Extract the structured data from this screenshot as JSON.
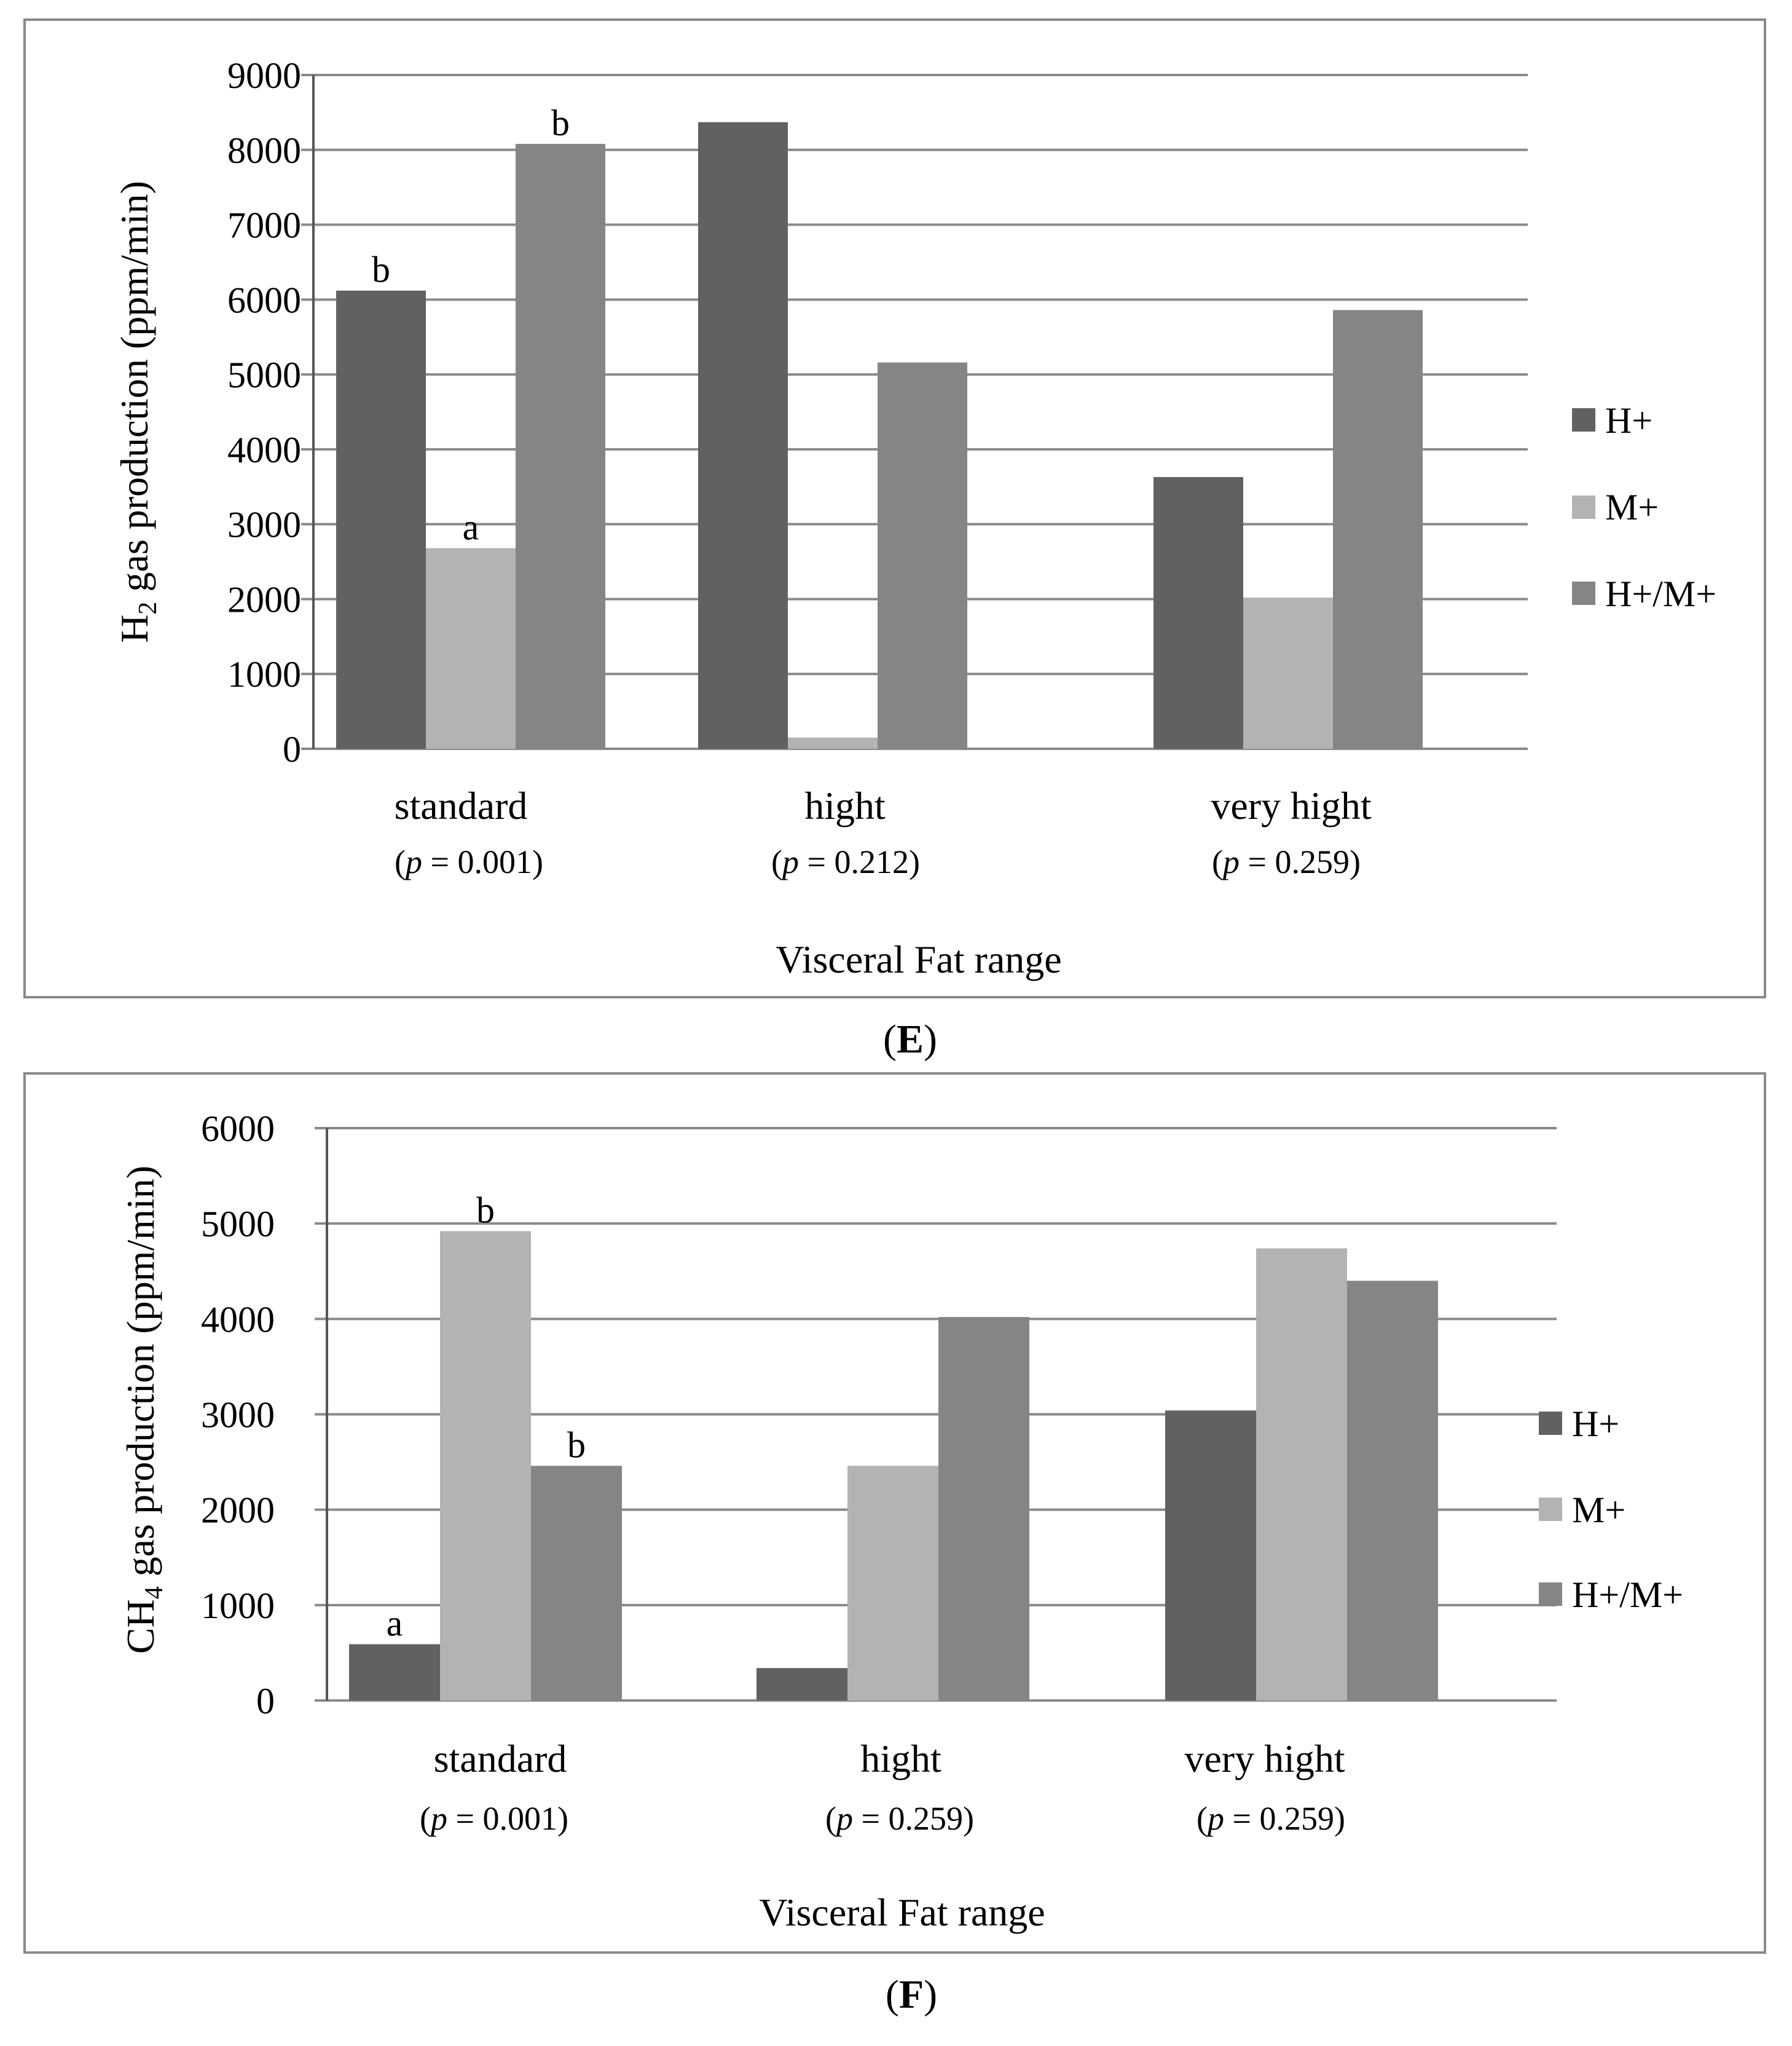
{
  "chart_data": [
    {
      "type": "bar",
      "panel_label": "E",
      "title": "",
      "ylabel_main": "H",
      "ylabel_sub": "2",
      "ylabel_rest": " gas production (ppm/min)",
      "xlabel": "Visceral Fat range",
      "categories": [
        "standard",
        "hight",
        "very hight"
      ],
      "p_values": [
        "0.001",
        "0.212",
        "0.259"
      ],
      "p_symbol": "p",
      "p_eq": " = ",
      "p_open": "(",
      "p_close": ")",
      "ylim": [
        0,
        9000
      ],
      "ytick_step": 1000,
      "series": [
        {
          "name": "H+",
          "color": "#616161",
          "values": [
            6120,
            8370,
            3630
          ]
        },
        {
          "name": "M+",
          "color": "#b3b3b3",
          "values": [
            2680,
            150,
            2020
          ]
        },
        {
          "name": "H+/M+",
          "color": "#858585",
          "values": [
            8080,
            5160,
            5860
          ]
        }
      ],
      "annotations": [
        {
          "series": 0,
          "category": 0,
          "text": "b"
        },
        {
          "series": 1,
          "category": 0,
          "text": "a"
        },
        {
          "series": 2,
          "category": 0,
          "text": "b"
        }
      ],
      "legend_position": "right"
    },
    {
      "type": "bar",
      "panel_label": "F",
      "title": "",
      "ylabel_main": "CH",
      "ylabel_sub": "4",
      "ylabel_rest": "  gas production (ppm/min)",
      "xlabel": "Visceral Fat range",
      "categories": [
        "standard",
        "hight",
        "very hight"
      ],
      "p_values": [
        "0.001",
        "0.259",
        "0.259"
      ],
      "p_symbol": "p",
      "p_eq": " = ",
      "p_open": "(",
      "p_close": ")",
      "ylim": [
        0,
        6000
      ],
      "ytick_step": 1000,
      "series": [
        {
          "name": "H+",
          "color": "#616161",
          "values": [
            590,
            340,
            3040
          ]
        },
        {
          "name": "M+",
          "color": "#b3b3b3",
          "values": [
            4920,
            2460,
            4740
          ]
        },
        {
          "name": "H+/M+",
          "color": "#858585",
          "values": [
            2460,
            4020,
            4400
          ]
        }
      ],
      "annotations": [
        {
          "series": 0,
          "category": 0,
          "text": "a"
        },
        {
          "series": 1,
          "category": 0,
          "text": "b"
        },
        {
          "series": 2,
          "category": 0,
          "text": "b"
        }
      ],
      "legend_position": "right"
    }
  ]
}
